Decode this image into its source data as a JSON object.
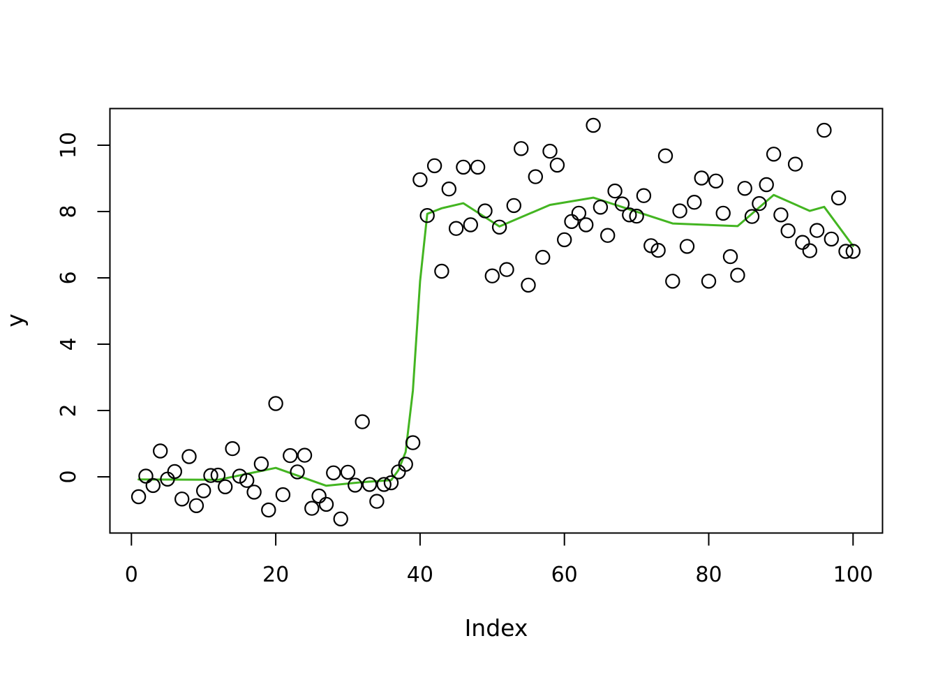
{
  "page": {
    "background": "#ffffff"
  },
  "chart_data": {
    "type": "scatter",
    "title": "",
    "xlabel": "Index",
    "ylabel": "y",
    "grid": false,
    "legend": null,
    "x_axis": {
      "ticks": [
        0,
        20,
        40,
        60,
        80,
        100
      ],
      "range": [
        -3,
        104
      ]
    },
    "y_axis": {
      "ticks": [
        0,
        2,
        4,
        6,
        8,
        10
      ],
      "range": [
        -1.75,
        11.05
      ]
    },
    "points": {
      "marker": "open-circle",
      "color": "#000000",
      "x_start": 1,
      "y_values": [
        -0.6,
        0.02,
        -0.26,
        0.78,
        -0.07,
        0.16,
        -0.67,
        0.61,
        -0.87,
        -0.42,
        0.04,
        0.05,
        -0.3,
        0.85,
        0.02,
        -0.11,
        -0.46,
        0.39,
        -1.0,
        2.21,
        -0.54,
        0.64,
        0.15,
        0.65,
        -0.95,
        -0.58,
        -0.83,
        0.12,
        -1.27,
        0.14,
        -0.25,
        1.66,
        -0.23,
        -0.74,
        -0.23,
        -0.18,
        0.15,
        0.38,
        1.03,
        8.96,
        7.88,
        9.38,
        6.2,
        8.68,
        7.49,
        9.34,
        7.6,
        9.34,
        8.02,
        6.06,
        7.53,
        6.25,
        8.18,
        9.9,
        5.78,
        9.05,
        6.62,
        9.82,
        9.4,
        7.15,
        7.7,
        7.95,
        7.6,
        10.6,
        8.13,
        7.28,
        8.62,
        8.23,
        7.9,
        7.86,
        8.48,
        6.97,
        6.83,
        9.68,
        5.9,
        8.02,
        6.95,
        8.28,
        9.01,
        5.9,
        8.92,
        7.95,
        6.64,
        6.08,
        8.7,
        7.85,
        8.24,
        8.81,
        9.73,
        7.9,
        7.42,
        9.43,
        7.07,
        6.82,
        7.43,
        10.45,
        7.17,
        8.41,
        6.8,
        6.8
      ]
    },
    "smoother": {
      "label": "running smoother line",
      "color": "#43B521",
      "vertices": [
        [
          1,
          -0.08
        ],
        [
          12,
          -0.09
        ],
        [
          20,
          0.27
        ],
        [
          27,
          -0.27
        ],
        [
          32,
          -0.16
        ],
        [
          36,
          -0.1
        ],
        [
          37,
          0.2
        ],
        [
          38,
          0.75
        ],
        [
          39,
          2.6
        ],
        [
          40,
          5.9
        ],
        [
          41,
          7.93
        ],
        [
          43,
          8.1
        ],
        [
          46,
          8.25
        ],
        [
          51,
          7.55
        ],
        [
          58,
          8.2
        ],
        [
          64,
          8.42
        ],
        [
          75,
          7.64
        ],
        [
          84,
          7.56
        ],
        [
          89,
          8.5
        ],
        [
          94,
          8.02
        ],
        [
          96,
          8.14
        ],
        [
          100,
          6.96
        ]
      ]
    }
  }
}
